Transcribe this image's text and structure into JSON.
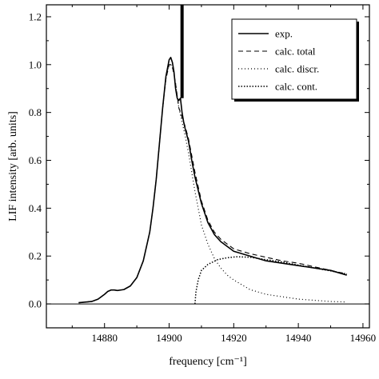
{
  "chart_data": {
    "type": "line",
    "title": "",
    "xlabel": "frequency [cm⁻¹]",
    "ylabel": "LIF intensity [arb. units]",
    "xlim": [
      14862,
      14962
    ],
    "ylim": [
      -0.1,
      1.25
    ],
    "xticks": [
      14880,
      14900,
      14920,
      14940,
      14960
    ],
    "yticks": [
      0.0,
      0.2,
      0.4,
      0.6,
      0.8,
      1.0,
      1.2
    ],
    "ytick_labels": [
      "0.0",
      "0.2",
      "0.4",
      "0.6",
      "0.8",
      "1.0",
      "1.2"
    ],
    "grid": false,
    "legend_position": "top-right",
    "zero_line": 0.0,
    "series": [
      {
        "name": "exp.",
        "style": "solid",
        "x": [
          14872,
          14876,
          14878,
          14880,
          14881,
          14882,
          14883,
          14884,
          14886,
          14888,
          14890,
          14892,
          14894,
          14895,
          14896,
          14897,
          14898,
          14899,
          14900,
          14900.5,
          14901,
          14901.5,
          14902,
          14902.5,
          14903,
          14903.5,
          14904,
          14904.5,
          14905,
          14906,
          14907,
          14908,
          14910,
          14912,
          14914,
          14916,
          14918,
          14920,
          14925,
          14930,
          14935,
          14940,
          14945,
          14950,
          14955
        ],
        "y": [
          0.005,
          0.01,
          0.02,
          0.04,
          0.052,
          0.058,
          0.058,
          0.056,
          0.06,
          0.075,
          0.11,
          0.18,
          0.3,
          0.4,
          0.52,
          0.67,
          0.82,
          0.95,
          1.02,
          1.03,
          1.01,
          0.97,
          0.9,
          0.86,
          0.85,
          0.86,
          0.8,
          0.76,
          0.73,
          0.68,
          0.6,
          0.53,
          0.42,
          0.34,
          0.29,
          0.26,
          0.24,
          0.22,
          0.2,
          0.18,
          0.17,
          0.16,
          0.15,
          0.14,
          0.12
        ]
      },
      {
        "name": "calc. total",
        "style": "dashed",
        "x": [
          14872,
          14876,
          14878,
          14880,
          14881,
          14882,
          14883,
          14884,
          14886,
          14888,
          14890,
          14892,
          14894,
          14895,
          14896,
          14897,
          14898,
          14899,
          14900,
          14900.5,
          14901,
          14901.5,
          14902,
          14902.5,
          14903,
          14904,
          14905,
          14906,
          14907,
          14908,
          14910,
          14912,
          14914,
          14916,
          14918,
          14920,
          14925,
          14930,
          14935,
          14940,
          14945,
          14950,
          14955
        ],
        "y": [
          0.005,
          0.01,
          0.02,
          0.04,
          0.052,
          0.058,
          0.058,
          0.056,
          0.06,
          0.075,
          0.11,
          0.18,
          0.3,
          0.4,
          0.52,
          0.67,
          0.82,
          0.94,
          1.0,
          1.0,
          0.99,
          0.96,
          0.92,
          0.87,
          0.82,
          0.78,
          0.74,
          0.69,
          0.62,
          0.55,
          0.43,
          0.35,
          0.3,
          0.27,
          0.25,
          0.23,
          0.21,
          0.195,
          0.18,
          0.17,
          0.155,
          0.14,
          0.125
        ]
      },
      {
        "name": "calc. discr.",
        "style": "dotted",
        "x": [
          14872,
          14876,
          14878,
          14880,
          14881,
          14882,
          14883,
          14884,
          14886,
          14888,
          14890,
          14892,
          14894,
          14895,
          14896,
          14897,
          14898,
          14899,
          14900,
          14900.5,
          14901,
          14901.5,
          14902,
          14902.5,
          14903,
          14904,
          14905,
          14906,
          14907,
          14908,
          14909,
          14910,
          14912,
          14914,
          14916,
          14918,
          14920,
          14925,
          14930,
          14935,
          14940,
          14945,
          14950,
          14955
        ],
        "y": [
          0.005,
          0.01,
          0.02,
          0.04,
          0.052,
          0.058,
          0.058,
          0.056,
          0.06,
          0.075,
          0.11,
          0.18,
          0.3,
          0.4,
          0.52,
          0.67,
          0.82,
          0.94,
          1.0,
          1.0,
          0.99,
          0.96,
          0.92,
          0.87,
          0.82,
          0.76,
          0.7,
          0.63,
          0.55,
          0.47,
          0.4,
          0.33,
          0.25,
          0.19,
          0.15,
          0.12,
          0.1,
          0.06,
          0.04,
          0.03,
          0.02,
          0.015,
          0.01,
          0.008
        ]
      },
      {
        "name": "calc. cont.",
        "style": "dotted-dense",
        "x": [
          14908,
          14908.3,
          14909,
          14910,
          14912,
          14915,
          14918,
          14921,
          14925,
          14930,
          14935,
          14940,
          14945,
          14950,
          14955
        ],
        "y": [
          0.0,
          0.05,
          0.1,
          0.14,
          0.165,
          0.185,
          0.193,
          0.197,
          0.195,
          0.185,
          0.175,
          0.162,
          0.15,
          0.138,
          0.125
        ]
      }
    ],
    "annotations": [
      {
        "type": "vertical-bar",
        "x": 14904,
        "y_from": 0.86,
        "y_to": 1.25
      }
    ]
  }
}
